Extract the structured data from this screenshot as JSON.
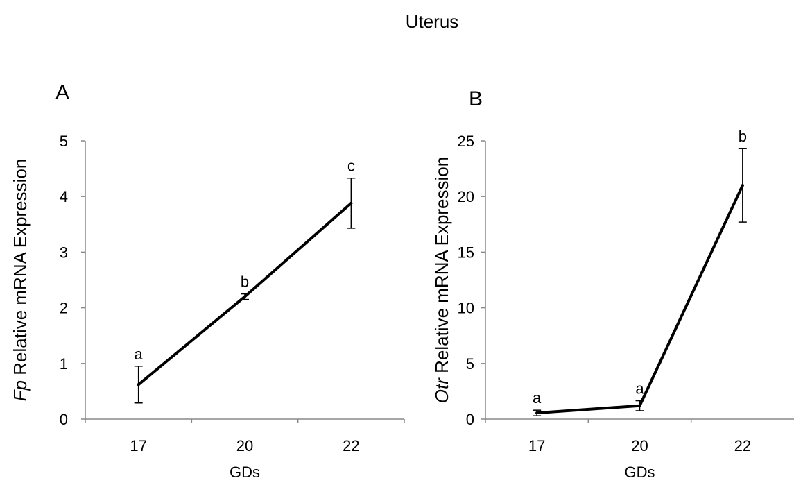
{
  "figure": {
    "title": "Uterus"
  },
  "chart_data": [
    {
      "type": "line",
      "panel": "A",
      "title": "",
      "xlabel": "GDs",
      "ylabel_italic": "Fp",
      "ylabel_rest": " Relative mRNA Expression",
      "categories": [
        "17",
        "20",
        "22"
      ],
      "y_ticks": [
        "0",
        "1",
        "2",
        "3",
        "4",
        "5"
      ],
      "ylim": [
        0,
        5
      ],
      "grid": false,
      "series": [
        {
          "values": [
            0.62,
            2.2,
            3.88
          ],
          "error": [
            0.33,
            0.05,
            0.45
          ],
          "significance": [
            "a",
            "b",
            "c"
          ]
        }
      ]
    },
    {
      "type": "line",
      "panel": "B",
      "title": "",
      "xlabel": "GDs",
      "ylabel_italic": "Otr",
      "ylabel_rest": " Relative mRNA Expression",
      "categories": [
        "17",
        "20",
        "22"
      ],
      "y_ticks": [
        "0",
        "5",
        "10",
        "15",
        "20",
        "25"
      ],
      "ylim": [
        0,
        25
      ],
      "grid": false,
      "series": [
        {
          "values": [
            0.55,
            1.2,
            21.0
          ],
          "error": [
            0.25,
            0.45,
            3.3
          ],
          "significance": [
            "a",
            "a",
            "b"
          ]
        }
      ]
    }
  ]
}
